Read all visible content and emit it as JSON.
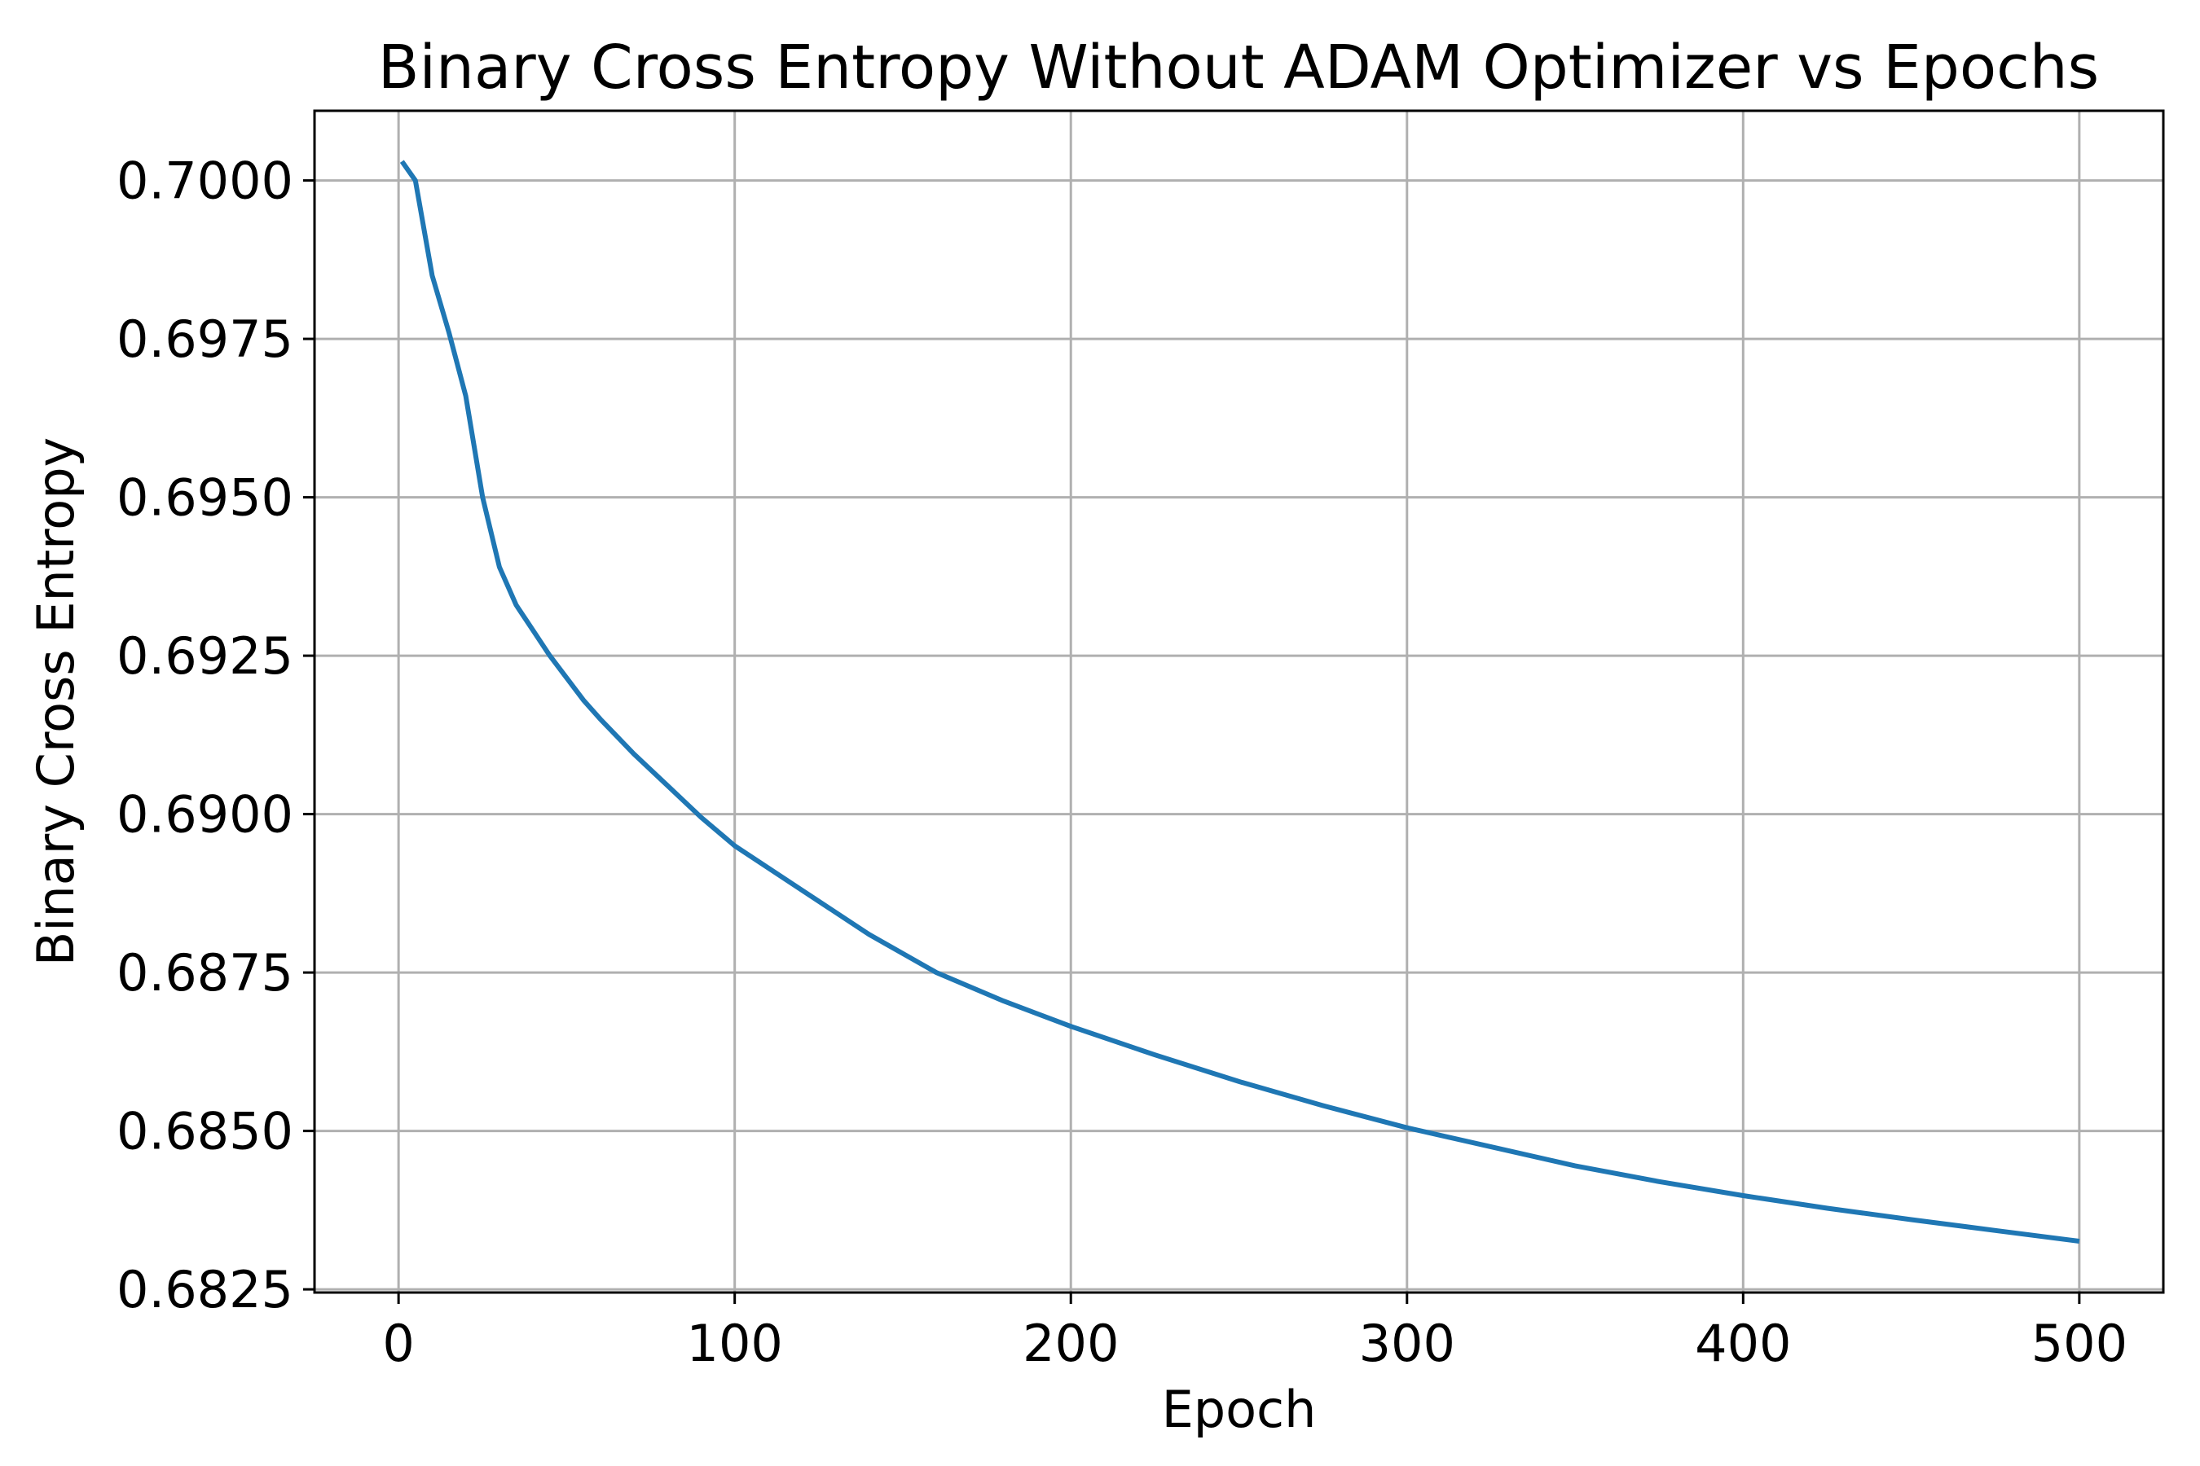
{
  "chart_data": {
    "type": "line",
    "title": "Binary Cross Entropy Without ADAM Optimizer vs Epochs",
    "xlabel": "Epoch",
    "ylabel": "Binary Cross Entropy",
    "xlim": [
      -25,
      525
    ],
    "ylim": [
      0.68245,
      0.7011
    ],
    "xticks": [
      0,
      100,
      200,
      300,
      400,
      500
    ],
    "yticks": [
      0.6825,
      0.685,
      0.6875,
      0.69,
      0.6925,
      0.695,
      0.6975,
      0.7
    ],
    "xtick_labels": [
      "0",
      "100",
      "200",
      "300",
      "400",
      "500"
    ],
    "ytick_labels": [
      "0.6825",
      "0.6850",
      "0.6875",
      "0.6900",
      "0.6925",
      "0.6950",
      "0.6975",
      "0.7000"
    ],
    "grid": true,
    "series": [
      {
        "color": "#1f77b4",
        "x": [
          1,
          5,
          10,
          15,
          20,
          25,
          30,
          35,
          40,
          45,
          50,
          55,
          60,
          70,
          80,
          90,
          100,
          120,
          140,
          160,
          180,
          200,
          225,
          250,
          275,
          300,
          325,
          350,
          375,
          400,
          425,
          450,
          475,
          500
        ],
        "y": [
          0.7003,
          0.7,
          0.6985,
          0.6976,
          0.6966,
          0.695,
          0.6939,
          0.6933,
          0.6929,
          0.6925,
          0.69215,
          0.6918,
          0.6915,
          0.69095,
          0.69045,
          0.68995,
          0.6895,
          0.6888,
          0.6881,
          0.6875,
          0.68705,
          0.68665,
          0.6862,
          0.68578,
          0.6854,
          0.68505,
          0.68475,
          0.68445,
          0.6842,
          0.68398,
          0.68378,
          0.6836,
          0.68343,
          0.68326
        ]
      }
    ]
  }
}
